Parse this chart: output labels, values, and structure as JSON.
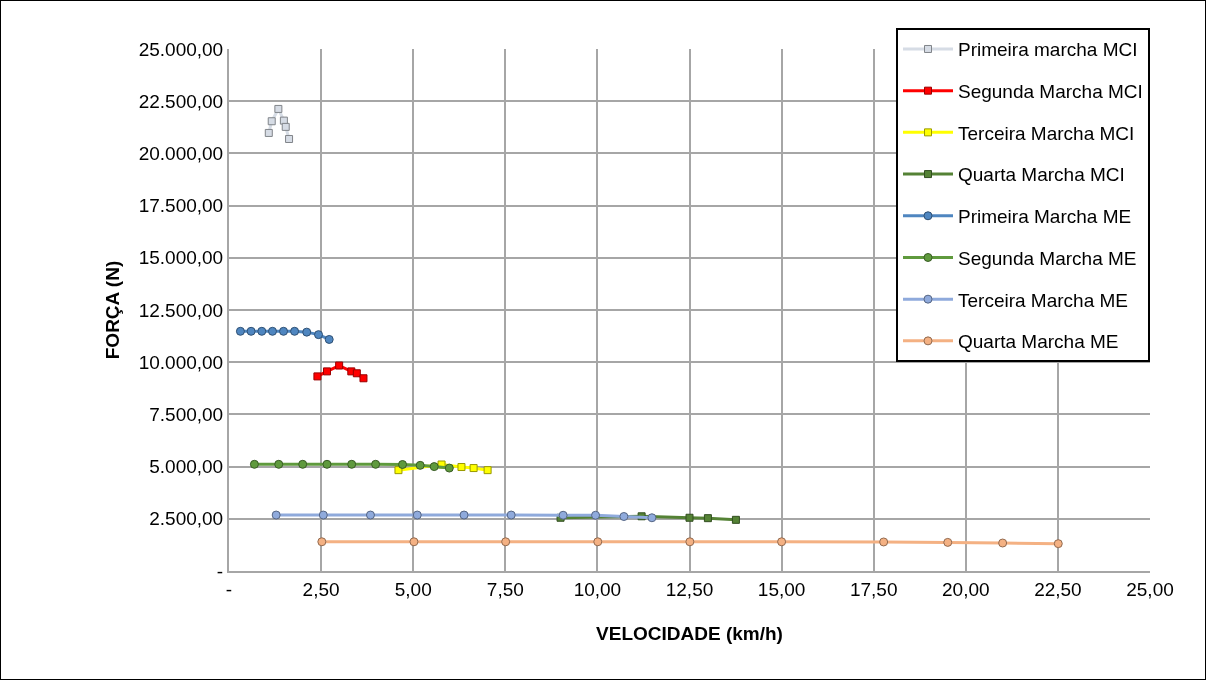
{
  "chart_data": {
    "type": "line",
    "xlabel": "VELOCIDADE (km/h)",
    "ylabel": "FORÇA (N)",
    "xlim": [
      0,
      25
    ],
    "ylim": [
      0,
      25000
    ],
    "xticks": [
      {
        "value": 0,
        "label": "-"
      },
      {
        "value": 2.5,
        "label": "2,50"
      },
      {
        "value": 5,
        "label": "5,00"
      },
      {
        "value": 7.5,
        "label": "7,50"
      },
      {
        "value": 10,
        "label": "10,00"
      },
      {
        "value": 12.5,
        "label": "12,50"
      },
      {
        "value": 15,
        "label": "15,00"
      },
      {
        "value": 17.5,
        "label": "17,50"
      },
      {
        "value": 20,
        "label": "20,00"
      },
      {
        "value": 22.5,
        "label": "22,50"
      },
      {
        "value": 25,
        "label": "25,00"
      }
    ],
    "yticks": [
      {
        "value": 0,
        "label": "-"
      },
      {
        "value": 2500,
        "label": "2.500,00"
      },
      {
        "value": 5000,
        "label": "5.000,00"
      },
      {
        "value": 7500,
        "label": "7.500,00"
      },
      {
        "value": 10000,
        "label": "10.000,00"
      },
      {
        "value": 12500,
        "label": "12.500,00"
      },
      {
        "value": 15000,
        "label": "15.000,00"
      },
      {
        "value": 17500,
        "label": "17.500,00"
      },
      {
        "value": 20000,
        "label": "20.000,00"
      },
      {
        "value": 22500,
        "label": "22.500,00"
      },
      {
        "value": 25000,
        "label": "25.000,00"
      }
    ],
    "grid": true,
    "legend": "top right",
    "series": [
      {
        "name": "Primeira marcha MCI",
        "marker": "square",
        "color": "#d6dce5",
        "x": [
          1.08,
          1.16,
          1.34,
          1.49,
          1.54,
          1.63
        ],
        "values": [
          20980,
          21540,
          22130,
          21570,
          21270,
          20690
        ]
      },
      {
        "name": "Segunda Marcha MCI",
        "marker": "square",
        "color": "#ff0000",
        "x": [
          2.4,
          2.66,
          2.99,
          3.32,
          3.47,
          3.65
        ],
        "values": [
          9320,
          9560,
          9840,
          9560,
          9470,
          9230
        ]
      },
      {
        "name": "Terceira Marcha MCI",
        "marker": "square",
        "color": "#ffff00",
        "x": [
          4.6,
          5.2,
          5.77,
          6.31,
          6.64,
          7.02
        ],
        "values": [
          4830,
          null,
          5100,
          4980,
          4930,
          4830
        ]
      },
      {
        "name": "Quarta Marcha MCI",
        "marker": "square",
        "color": "#548235",
        "x": [
          9.0,
          10.0,
          11.2,
          12.5,
          13.0,
          13.76
        ],
        "values": [
          2550,
          null,
          2620,
          2550,
          2530,
          2450
        ]
      },
      {
        "name": "Primeira Marcha ME",
        "marker": "circle",
        "color": "#4f86c0",
        "x": [
          0.31,
          0.6,
          0.89,
          1.18,
          1.48,
          1.78,
          2.11,
          2.43,
          2.72
        ],
        "values": [
          11480,
          11480,
          11480,
          11480,
          11480,
          11480,
          11440,
          11320,
          11090
        ]
      },
      {
        "name": "Segunda Marcha ME",
        "marker": "circle",
        "color": "#5f9a3d",
        "x": [
          0.69,
          1.35,
          2.0,
          2.66,
          3.33,
          3.98,
          4.71,
          5.19,
          5.57,
          5.98
        ],
        "values": [
          5110,
          5110,
          5110,
          5110,
          5110,
          5110,
          5100,
          5060,
          5000,
          4930
        ]
      },
      {
        "name": "Terceira Marcha ME",
        "marker": "circle",
        "color": "#8faadc",
        "x": [
          1.28,
          2.56,
          3.84,
          5.11,
          6.38,
          7.66,
          9.07,
          9.95,
          10.72,
          11.48
        ],
        "values": [
          2680,
          2680,
          2680,
          2680,
          2680,
          2680,
          2670,
          2670,
          2610,
          2550
        ]
      },
      {
        "name": "Quarta Marcha ME",
        "marker": "circle",
        "color": "#f4b183",
        "x": [
          2.52,
          5.02,
          7.51,
          10.01,
          12.51,
          15.0,
          17.77,
          19.51,
          21.0,
          22.51
        ],
        "values": [
          1400,
          1400,
          1400,
          1400,
          1400,
          1400,
          1390,
          1370,
          1340,
          1310
        ]
      }
    ]
  }
}
